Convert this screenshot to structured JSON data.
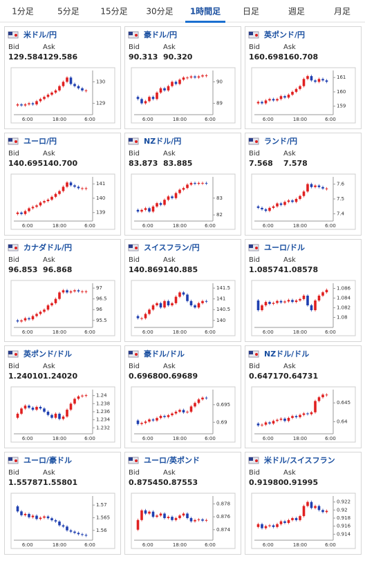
{
  "tabs": [
    "1分足",
    "5分足",
    "15分足",
    "30分足",
    "1時間足",
    "日足",
    "週足",
    "月足"
  ],
  "active_tab": 4,
  "labels": {
    "bid": "Bid",
    "ask": "Ask"
  },
  "x_labels": [
    "6:00",
    "18:00",
    "6:00"
  ],
  "panels": [
    {
      "title": "米ドル/円",
      "bid": "129.584",
      "ask": "129.586",
      "ylim": [
        128.6,
        130.4
      ],
      "yticks": [
        129,
        130
      ],
      "closes": [
        128.9,
        128.95,
        128.9,
        128.95,
        129.0,
        128.95,
        129.1,
        129.2,
        129.3,
        129.4,
        129.5,
        129.6,
        129.8,
        130.0,
        130.2,
        129.9,
        129.8,
        129.7,
        129.6,
        129.6
      ]
    },
    {
      "title": "豪ドル/円",
      "bid": "90.313",
      "ask": "90.320",
      "ylim": [
        88.6,
        90.4
      ],
      "yticks": [
        89,
        90
      ],
      "closes": [
        89.3,
        89.2,
        89.0,
        89.1,
        89.3,
        89.2,
        89.5,
        89.7,
        89.6,
        89.8,
        90.0,
        89.9,
        90.1,
        90.2,
        90.2,
        90.25,
        90.2,
        90.25,
        90.3,
        90.3
      ]
    },
    {
      "title": "英ポンド/円",
      "bid": "160.698",
      "ask": "160.708",
      "ylim": [
        158.6,
        161.3
      ],
      "yticks": [
        159,
        160,
        161
      ],
      "closes": [
        159.2,
        159.3,
        159.2,
        159.4,
        159.5,
        159.4,
        159.5,
        159.7,
        159.6,
        159.8,
        160.0,
        160.2,
        160.4,
        160.9,
        161.1,
        160.8,
        160.7,
        160.9,
        160.8,
        160.7
      ]
    },
    {
      "title": "ユーロ/円",
      "bid": "140.695",
      "ask": "140.700",
      "ylim": [
        138.6,
        141.3
      ],
      "yticks": [
        139,
        140,
        141
      ],
      "closes": [
        138.9,
        139.0,
        138.9,
        139.1,
        139.3,
        139.4,
        139.5,
        139.7,
        139.8,
        139.9,
        140.1,
        140.3,
        140.5,
        140.8,
        141.1,
        140.9,
        140.8,
        140.7,
        140.7,
        140.7
      ]
    },
    {
      "title": "NZドル/円",
      "bid": "83.873",
      "ask": "83.885",
      "ylim": [
        81.8,
        84.1
      ],
      "yticks": [
        82,
        83
      ],
      "closes": [
        82.3,
        82.2,
        82.3,
        82.4,
        82.2,
        82.5,
        82.7,
        82.6,
        82.9,
        83.1,
        83.0,
        83.3,
        83.5,
        83.6,
        83.8,
        83.9,
        83.85,
        83.9,
        83.9,
        83.87
      ]
    },
    {
      "title": "ランド/円",
      "bid": "7.568",
      "ask": "7.578",
      "ylim": [
        7.37,
        7.63
      ],
      "yticks": [
        7.4,
        7.5,
        7.6
      ],
      "closes": [
        7.45,
        7.44,
        7.43,
        7.42,
        7.44,
        7.45,
        7.47,
        7.46,
        7.48,
        7.49,
        7.48,
        7.5,
        7.52,
        7.55,
        7.6,
        7.58,
        7.59,
        7.58,
        7.57,
        7.57
      ]
    },
    {
      "title": "カナダドル/円",
      "bid": "96.853",
      "ask": "96.868",
      "ylim": [
        95.3,
        97.1
      ],
      "yticks": [
        95.5,
        96,
        96.5,
        97
      ],
      "closes": [
        95.5,
        95.45,
        95.5,
        95.6,
        95.55,
        95.7,
        95.8,
        95.9,
        96.0,
        96.2,
        96.3,
        96.5,
        96.8,
        96.9,
        96.8,
        96.85,
        96.9,
        96.85,
        96.85,
        96.85
      ]
    },
    {
      "title": "スイスフラン/円",
      "bid": "140.869",
      "ask": "140.885",
      "ylim": [
        139.8,
        141.6
      ],
      "yticks": [
        140,
        140.5,
        141,
        141.5
      ],
      "closes": [
        140.2,
        140.1,
        140.1,
        140.3,
        140.5,
        140.7,
        140.8,
        140.6,
        140.9,
        140.7,
        140.8,
        141.1,
        141.3,
        141.2,
        140.9,
        140.7,
        140.6,
        140.8,
        140.9,
        140.87
      ]
    },
    {
      "title": "ユーロ/ドル",
      "bid": "1.08574",
      "ask": "1.08578",
      "ylim": [
        1.0785,
        1.0865
      ],
      "yticks": [
        1.08,
        1.082,
        1.084,
        1.086
      ],
      "closes": [
        1.0835,
        1.0815,
        1.0825,
        1.0832,
        1.0828,
        1.083,
        1.0834,
        1.0831,
        1.0833,
        1.0836,
        1.0832,
        1.0835,
        1.0838,
        1.0845,
        1.0825,
        1.0815,
        1.0835,
        1.0845,
        1.0852,
        1.0857
      ]
    },
    {
      "title": "英ポンド/ドル",
      "bid": "1.24010",
      "ask": "1.24020",
      "ylim": [
        1.2312,
        1.2408
      ],
      "yticks": [
        1.232,
        1.234,
        1.236,
        1.238,
        1.24
      ],
      "closes": [
        1.2345,
        1.2355,
        1.2368,
        1.2375,
        1.237,
        1.2365,
        1.2372,
        1.2368,
        1.236,
        1.2352,
        1.2345,
        1.2355,
        1.2342,
        1.2348,
        1.2365,
        1.238,
        1.2392,
        1.2398,
        1.24,
        1.2401
      ]
    },
    {
      "title": "豪ドル/ドル",
      "bid": "0.69680",
      "ask": "0.69689",
      "ylim": [
        0.6875,
        0.6985
      ],
      "yticks": [
        0.69,
        0.695
      ],
      "closes": [
        0.6905,
        0.6895,
        0.6898,
        0.6902,
        0.6908,
        0.6905,
        0.6912,
        0.6918,
        0.6915,
        0.692,
        0.6925,
        0.693,
        0.6935,
        0.6928,
        0.693,
        0.6945,
        0.6955,
        0.6965,
        0.697,
        0.6968
      ]
    },
    {
      "title": "NZドル/ドル",
      "bid": "0.64717",
      "ask": "0.64731",
      "ylim": [
        0.6375,
        0.6478
      ],
      "yticks": [
        0.64,
        0.645
      ],
      "closes": [
        0.6395,
        0.639,
        0.6392,
        0.6398,
        0.6395,
        0.6402,
        0.6405,
        0.6408,
        0.6402,
        0.641,
        0.6415,
        0.6412,
        0.6418,
        0.6422,
        0.642,
        0.6425,
        0.6455,
        0.6465,
        0.6472,
        0.6472
      ]
    },
    {
      "title": "ユーロ/豪ドル",
      "bid": "1.55787",
      "ask": "1.55801",
      "ylim": [
        1.5572,
        1.5725
      ],
      "yticks": [
        1.56,
        1.565,
        1.57
      ],
      "closes": [
        1.5695,
        1.5675,
        1.566,
        1.5665,
        1.5652,
        1.5658,
        1.5645,
        1.565,
        1.5655,
        1.5648,
        1.564,
        1.5635,
        1.562,
        1.5615,
        1.56,
        1.5595,
        1.559,
        1.5585,
        1.5582,
        1.5579
      ]
    },
    {
      "title": "ユーロ/英ポンド",
      "bid": "0.87545",
      "ask": "0.87553",
      "ylim": [
        0.8728,
        0.8788
      ],
      "yticks": [
        0.874,
        0.876,
        0.878
      ],
      "closes": [
        0.874,
        0.8755,
        0.877,
        0.8765,
        0.8768,
        0.876,
        0.8762,
        0.8765,
        0.8758,
        0.876,
        0.8755,
        0.8758,
        0.8762,
        0.8765,
        0.8758,
        0.8753,
        0.8755,
        0.8756,
        0.8754,
        0.8755
      ]
    },
    {
      "title": "米ドル/スイスフラン",
      "bid": "0.91980",
      "ask": "0.91995",
      "ylim": [
        0.9132,
        0.9228
      ],
      "yticks": [
        0.914,
        0.916,
        0.918,
        0.92,
        0.922
      ],
      "closes": [
        0.9158,
        0.9165,
        0.9155,
        0.916,
        0.9162,
        0.9158,
        0.9165,
        0.9172,
        0.9168,
        0.9175,
        0.918,
        0.9175,
        0.9185,
        0.921,
        0.922,
        0.9205,
        0.921,
        0.92,
        0.9195,
        0.9198
      ]
    }
  ]
}
